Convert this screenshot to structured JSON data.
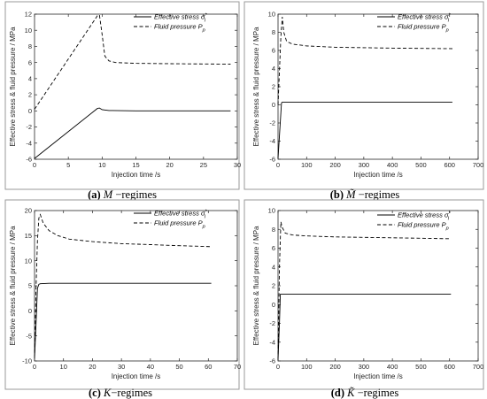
{
  "chart_data": [
    {
      "type": "line",
      "caption": {
        "letter": "(a)",
        "symbol": "M",
        "suffix": " −regimes"
      },
      "xlabel": "Injection time /s",
      "ylabel": "Effective stress & fluid pressure / MPa",
      "xlim": [
        0,
        30
      ],
      "ylim": [
        -6,
        12
      ],
      "xticks": [
        0,
        5,
        10,
        15,
        20,
        25,
        30
      ],
      "yticks": [
        -6,
        -4,
        -2,
        0,
        2,
        4,
        6,
        8,
        10,
        12
      ],
      "legend_position": "top-right",
      "series": [
        {
          "name": "Effective stress σ₁*",
          "legend_main": "Effective stress ",
          "legend_sym": "σ",
          "legend_sub": "I",
          "legend_sup": "*",
          "style": "solid",
          "x": [
            0,
            9.3,
            9.6,
            10,
            11,
            15,
            20,
            25,
            29
          ],
          "y": [
            -5.9,
            0.3,
            0.35,
            0.15,
            0.05,
            0,
            0,
            0,
            0
          ]
        },
        {
          "name": "Fluid pressure Pp",
          "legend_main": "Fluid pressure ",
          "legend_sym": "P",
          "legend_sub": "p",
          "legend_sup": "",
          "style": "dashed",
          "x": [
            0,
            9.3,
            9.6,
            10,
            10.4,
            11,
            12,
            15,
            20,
            25,
            29
          ],
          "y": [
            0.2,
            11.8,
            11.9,
            9.5,
            6.8,
            6.2,
            6.0,
            5.9,
            5.85,
            5.82,
            5.8
          ]
        }
      ]
    },
    {
      "type": "line",
      "caption": {
        "letter": "(b)",
        "symbol": "M̃",
        "suffix": " −regimes"
      },
      "xlabel": "Injection time /s",
      "ylabel": "Effective stress & fluid pressure / MPa",
      "xlim": [
        0,
        700
      ],
      "ylim": [
        -6,
        10
      ],
      "xticks": [
        0,
        100,
        200,
        300,
        400,
        500,
        600,
        700
      ],
      "yticks": [
        -6,
        -4,
        -2,
        0,
        2,
        4,
        6,
        8,
        10
      ],
      "legend_position": "top-right",
      "series": [
        {
          "name": "Effective stress σ₁*",
          "legend_main": "Effective stress ",
          "legend_sym": "σ",
          "legend_sub": "I",
          "legend_sup": "*",
          "style": "solid",
          "x": [
            0,
            12,
            15,
            20,
            100,
            300,
            500,
            610
          ],
          "y": [
            -5.9,
            0.2,
            0.3,
            0.3,
            0.3,
            0.3,
            0.3,
            0.3
          ]
        },
        {
          "name": "Fluid pressure Pp",
          "legend_main": "Fluid pressure ",
          "legend_sym": "P",
          "legend_sub": "p",
          "legend_sup": "",
          "style": "dashed",
          "x": [
            0,
            10,
            15,
            20,
            30,
            50,
            100,
            200,
            300,
            400,
            500,
            610
          ],
          "y": [
            0,
            7.5,
            9.7,
            8.0,
            7.0,
            6.7,
            6.5,
            6.35,
            6.3,
            6.25,
            6.22,
            6.2
          ]
        }
      ]
    },
    {
      "type": "line",
      "caption": {
        "letter": "(c)",
        "symbol": "K",
        "suffix": "−regimes"
      },
      "xlabel": "Injection time /s",
      "ylabel": "Effective stress & fluid pressure / MPa",
      "xlim": [
        0,
        70
      ],
      "ylim": [
        -10,
        20
      ],
      "xticks": [
        0,
        10,
        20,
        30,
        40,
        50,
        60,
        70
      ],
      "yticks": [
        -10,
        -5,
        0,
        5,
        10,
        15,
        20
      ],
      "legend_position": "top-right",
      "series": [
        {
          "name": "Effective stress σ₁*",
          "legend_main": "Effective stress ",
          "legend_sym": "σ",
          "legend_sub": "I",
          "legend_sup": "*",
          "style": "solid",
          "x": [
            0,
            0.5,
            1,
            1.5,
            2,
            5,
            10,
            20,
            30,
            40,
            50,
            61
          ],
          "y": [
            -9.5,
            -3,
            4.5,
            5.3,
            5.4,
            5.5,
            5.5,
            5.5,
            5.5,
            5.5,
            5.5,
            5.5
          ]
        },
        {
          "name": "Fluid pressure Pp",
          "legend_main": "Fluid pressure ",
          "legend_sym": "P",
          "legend_sub": "p",
          "legend_sup": "",
          "style": "dashed",
          "x": [
            0,
            0.5,
            1,
            1.5,
            2,
            3,
            5,
            8,
            12,
            20,
            30,
            40,
            50,
            61
          ],
          "y": [
            -9.5,
            4,
            14,
            18.5,
            19.2,
            17.5,
            16,
            15,
            14.3,
            13.8,
            13.4,
            13.2,
            13.0,
            12.8
          ]
        }
      ]
    },
    {
      "type": "line",
      "caption": {
        "letter": "(d)",
        "symbol": "K̃",
        "suffix": " −regimes"
      },
      "xlabel": "Injection time /s",
      "ylabel": "Effective stress & fluid pressure / MPa",
      "xlim": [
        0,
        700
      ],
      "ylim": [
        -6,
        10
      ],
      "xticks": [
        0,
        100,
        200,
        300,
        400,
        500,
        600,
        700
      ],
      "yticks": [
        -6,
        -4,
        -2,
        0,
        2,
        4,
        6,
        8,
        10
      ],
      "legend_position": "top-right",
      "series": [
        {
          "name": "Effective stress σ₁*",
          "legend_main": "Effective stress ",
          "legend_sym": "σ",
          "legend_sub": "I",
          "legend_sup": "*",
          "style": "solid",
          "x": [
            0,
            5,
            8,
            15,
            50,
            200,
            400,
            605
          ],
          "y": [
            -5.9,
            -2,
            1.1,
            1.1,
            1.1,
            1.1,
            1.1,
            1.1
          ]
        },
        {
          "name": "Fluid pressure Pp",
          "legend_main": "Fluid pressure ",
          "legend_sym": "P",
          "legend_sub": "p",
          "legend_sup": "",
          "style": "dashed",
          "x": [
            0,
            5,
            10,
            15,
            25,
            50,
            100,
            200,
            300,
            400,
            500,
            605
          ],
          "y": [
            -5.9,
            4,
            8.8,
            8.2,
            7.6,
            7.4,
            7.3,
            7.2,
            7.15,
            7.1,
            7.05,
            7.0
          ]
        }
      ]
    }
  ]
}
